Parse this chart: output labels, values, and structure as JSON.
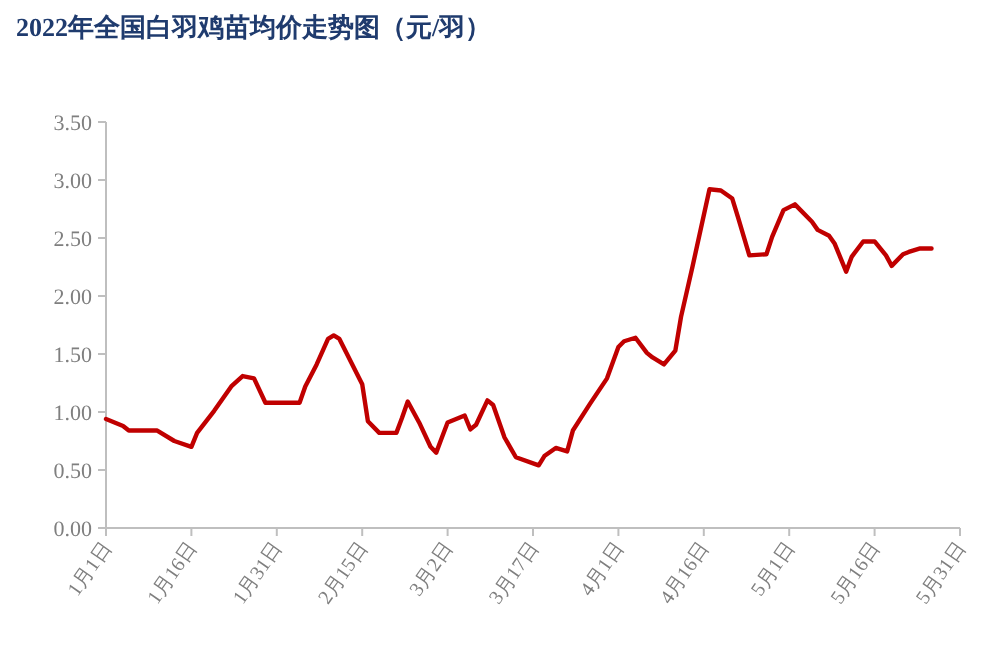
{
  "chart_data": {
    "type": "line",
    "title": "2022年全国白羽鸡苗均价走势图（元/羽）",
    "x": [
      "--01-01",
      "--01-04",
      "--01-05",
      "--01-10",
      "--01-13",
      "--01-16",
      "--01-17",
      "--01-20",
      "--01-23",
      "--01-25",
      "--01-27",
      "--01-29",
      "--02-04",
      "--02-05",
      "--02-07",
      "--02-09",
      "--02-10",
      "--02-11",
      "--02-15",
      "--02-16",
      "--02-18",
      "--02-21",
      "--02-22",
      "--02-23",
      "--02-25",
      "--02-27",
      "--02-28",
      "--03-01",
      "--03-02",
      "--03-05",
      "--03-06",
      "--03-07",
      "--03-09",
      "--03-10",
      "--03-12",
      "--03-14",
      "--03-18",
      "--03-19",
      "--03-21",
      "--03-23",
      "--03-24",
      "--03-27",
      "--03-30",
      "--04-01",
      "--04-02",
      "--04-04",
      "--04-06",
      "--04-07",
      "--04-09",
      "--04-11",
      "--04-12",
      "--04-14",
      "--04-17",
      "--04-19",
      "--04-21",
      "--04-22",
      "--04-24",
      "--04-27",
      "--04-28",
      "--04-30",
      "--05-02",
      "--05-05",
      "--05-06",
      "--05-08",
      "--05-09",
      "--05-11",
      "--05-12",
      "--05-14",
      "--05-16",
      "--05-18",
      "--05-19",
      "--05-21",
      "--05-22",
      "--05-24",
      "--05-26"
    ],
    "series": [
      {
        "color": "#c00000",
        "values": [
          0.94,
          0.88,
          0.84,
          0.84,
          0.75,
          0.7,
          0.82,
          1.01,
          1.22,
          1.31,
          1.29,
          1.08,
          1.08,
          1.22,
          1.41,
          1.63,
          1.66,
          1.63,
          1.24,
          0.92,
          0.82,
          0.82,
          0.95,
          1.09,
          0.91,
          0.7,
          0.65,
          0.78,
          0.91,
          0.97,
          0.85,
          0.89,
          1.1,
          1.06,
          0.78,
          0.61,
          0.54,
          0.62,
          0.69,
          0.66,
          0.84,
          1.07,
          1.29,
          1.56,
          1.61,
          1.64,
          1.51,
          1.47,
          1.41,
          1.53,
          1.82,
          2.25,
          2.92,
          2.91,
          2.84,
          2.68,
          2.35,
          2.36,
          2.51,
          2.74,
          2.79,
          2.64,
          2.57,
          2.52,
          2.45,
          2.21,
          2.34,
          2.47,
          2.47,
          2.35,
          2.26,
          2.36,
          2.38,
          2.41,
          2.41
        ]
      }
    ],
    "xlim": [
      "--01-01",
      "--05-31"
    ],
    "xticks": [
      {
        "value": "--01-01",
        "label": "1月1日"
      },
      {
        "value": "--01-16",
        "label": "1月16日"
      },
      {
        "value": "--01-31",
        "label": "1月31日"
      },
      {
        "value": "--02-15",
        "label": "2月15日"
      },
      {
        "value": "--03-02",
        "label": "3月2日"
      },
      {
        "value": "--03-17",
        "label": "3月17日"
      },
      {
        "value": "--04-01",
        "label": "4月1日"
      },
      {
        "value": "--04-16",
        "label": "4月16日"
      },
      {
        "value": "--05-01",
        "label": "5月1日"
      },
      {
        "value": "--05-16",
        "label": "5月16日"
      },
      {
        "value": "--05-31",
        "label": "5月31日"
      }
    ],
    "ylim": [
      0,
      3.5
    ],
    "yticks": [
      {
        "value": 0,
        "label": "0.00"
      },
      {
        "value": 0.5,
        "label": "0.50"
      },
      {
        "value": 1,
        "label": "1.00"
      },
      {
        "value": 1.5,
        "label": "1.50"
      },
      {
        "value": 2,
        "label": "2.00"
      },
      {
        "value": 2.5,
        "label": "2.50"
      },
      {
        "value": 3,
        "label": "3.00"
      },
      {
        "value": 3.5,
        "label": "3.50"
      }
    ],
    "grid": false,
    "marker": "none",
    "line_style": "solid"
  }
}
